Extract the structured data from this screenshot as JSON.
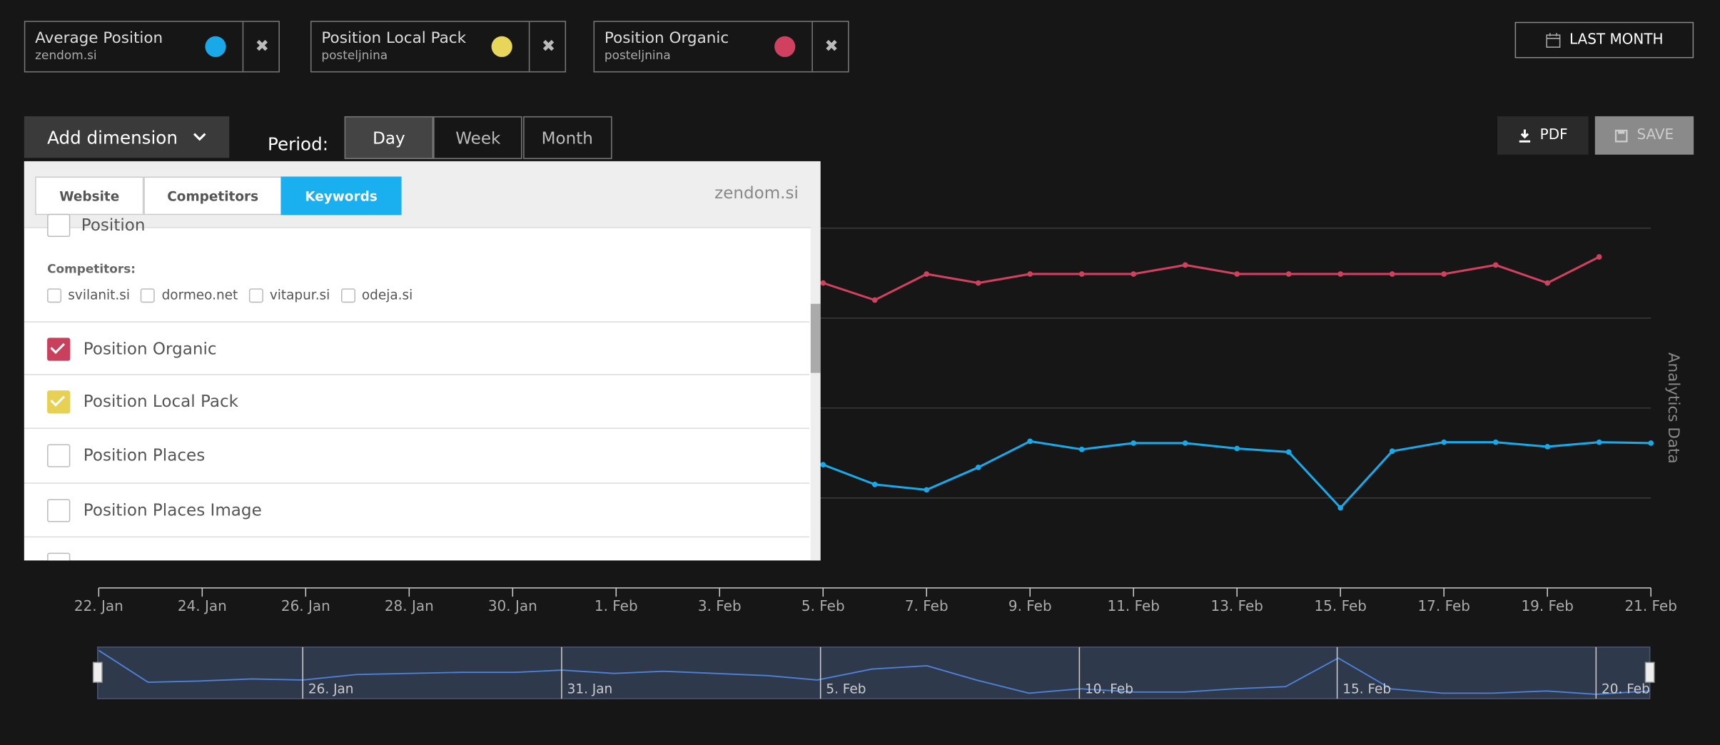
{
  "chart_data": {
    "type": "line",
    "y_label": "Analytics Data",
    "x": [
      "22. Jan",
      null,
      "24. Jan",
      null,
      "26. Jan",
      null,
      "28. Jan",
      null,
      "30. Jan",
      null,
      "1. Feb",
      null,
      "3. Feb",
      null,
      "5. Feb",
      null,
      "7. Feb",
      null,
      "9. Feb",
      null,
      "11. Feb",
      null,
      "13. Feb",
      null,
      "15. Feb",
      null,
      "17. Feb",
      null,
      "19. Feb",
      null,
      "21. Feb"
    ],
    "ylim": [
      0,
      4
    ],
    "series": [
      {
        "name": "Average Position",
        "site": "zendom.si",
        "color": "#1aa9e8",
        "values": [
          null,
          null,
          null,
          null,
          null,
          null,
          null,
          null,
          null,
          null,
          null,
          null,
          null,
          null,
          1.37,
          1.15,
          1.09,
          1.34,
          1.63,
          1.54,
          1.61,
          1.61,
          1.55,
          1.51,
          0.89,
          1.52,
          1.62,
          1.62,
          1.57,
          1.62,
          1.61
        ]
      },
      {
        "name": "Position Local Pack",
        "site": "posteljnina",
        "color": "#e8d65a",
        "values": [
          null,
          null,
          null,
          null,
          null,
          null,
          null,
          null,
          null,
          null,
          null,
          null,
          null,
          null,
          null,
          null,
          null,
          null,
          null,
          null,
          null,
          null,
          null,
          null,
          null,
          null,
          null,
          null,
          null,
          null,
          null
        ]
      },
      {
        "name": "Position Organic",
        "site": "posteljnina",
        "color": "#d0415f",
        "values": [
          null,
          null,
          null,
          null,
          null,
          null,
          null,
          null,
          null,
          null,
          null,
          null,
          null,
          null,
          3.39,
          3.2,
          3.49,
          3.39,
          3.49,
          3.49,
          3.49,
          3.59,
          3.49,
          3.49,
          3.49,
          3.49,
          3.49,
          3.59,
          3.39,
          3.68,
          null
        ]
      }
    ],
    "navigator_labels": [
      "26. Jan",
      "31. Jan",
      "5. Feb",
      "10. Feb",
      "15. Feb",
      "20. Feb"
    ]
  },
  "toolbar": {
    "date_range": "LAST MONTH",
    "add_dimension": "Add dimension",
    "period_label": "Period:",
    "periods": [
      "Day",
      "Week",
      "Month"
    ],
    "pdf": "PDF",
    "save": "SAVE"
  },
  "panel": {
    "tabs": [
      "Website",
      "Competitors",
      "Keywords"
    ],
    "site": "zendom.si",
    "partial_row": "Position",
    "competitors_label": "Competitors:",
    "competitors": [
      "svilanit.si",
      "dormeo.net",
      "vitapur.si",
      "odeja.si"
    ],
    "rows": [
      {
        "label": "Position Organic",
        "checked": true
      },
      {
        "label": "Position Local Pack",
        "checked": true
      },
      {
        "label": "Position Places",
        "checked": false
      },
      {
        "label": "Position Places Image",
        "checked": false
      }
    ]
  }
}
